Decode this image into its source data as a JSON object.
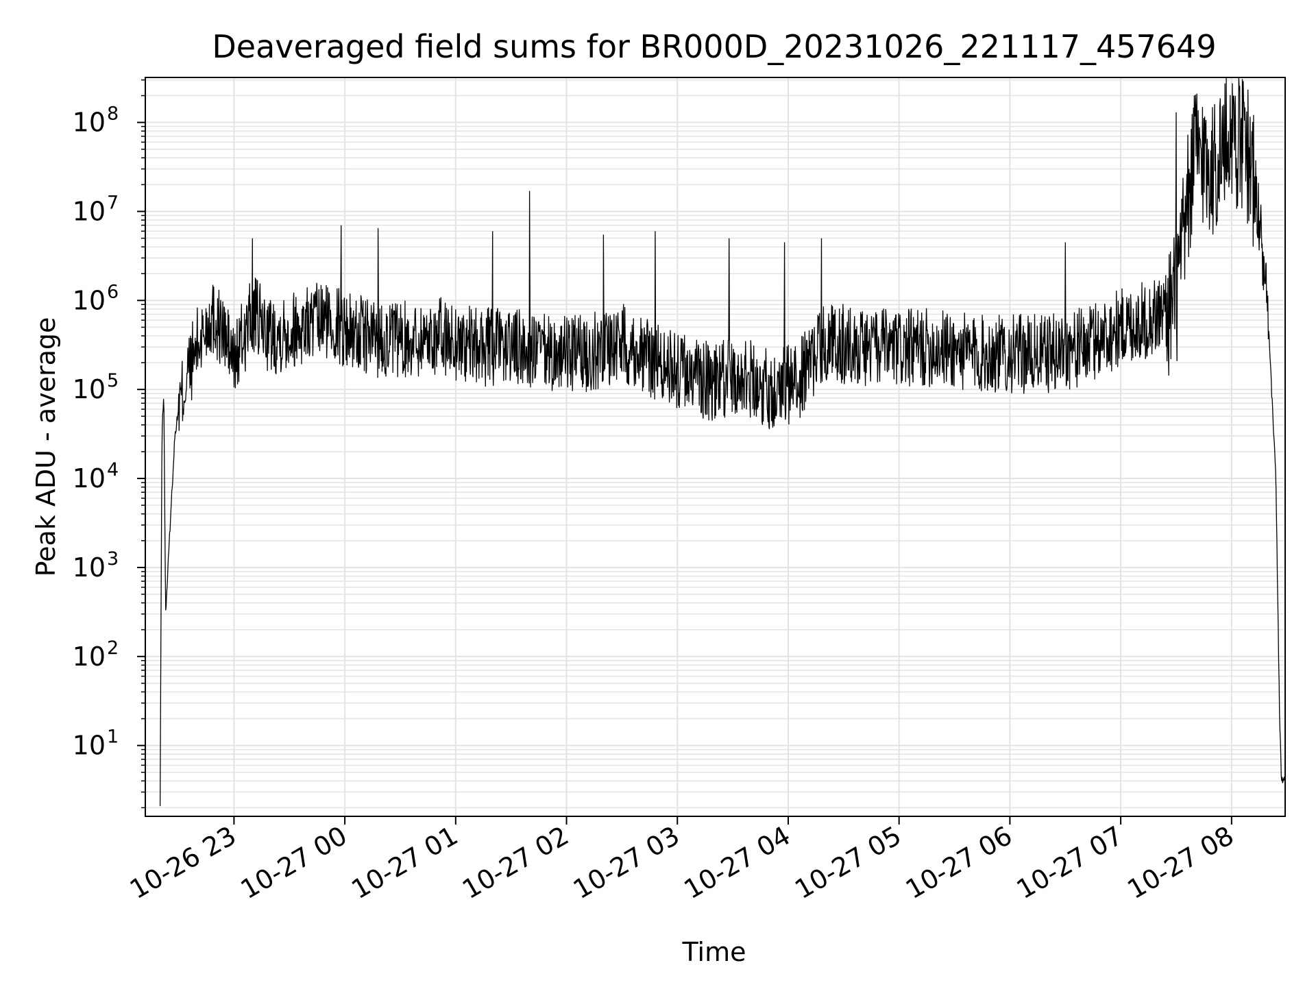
{
  "chart_data": {
    "type": "line",
    "title": "Deaveraged field sums for BR000D_20231026_221117_457649",
    "xlabel": "Time",
    "ylabel": "Peak ADU - average",
    "yscale": "log",
    "ylim": [
      1.6,
      320000000
    ],
    "xlim": [
      "2023-10-26 22:12",
      "2023-10-27 08:29"
    ],
    "grid": true,
    "line_color": "#000000",
    "grid_color": "#e3e3e3",
    "x_ticks": [
      "10-26 23",
      "10-27 00",
      "10-27 01",
      "10-27 02",
      "10-27 03",
      "10-27 04",
      "10-27 05",
      "10-27 06",
      "10-27 07",
      "10-27 08"
    ],
    "y_ticks": [
      {
        "base": "10",
        "exp": "1"
      },
      {
        "base": "10",
        "exp": "2"
      },
      {
        "base": "10",
        "exp": "3"
      },
      {
        "base": "10",
        "exp": "4"
      },
      {
        "base": "10",
        "exp": "5"
      },
      {
        "base": "10",
        "exp": "6"
      },
      {
        "base": "10",
        "exp": "7"
      },
      {
        "base": "10",
        "exp": "8"
      }
    ],
    "series": [
      {
        "x": [
          "2023-10-26 22:20",
          "2023-10-26 22:21",
          "2023-10-26 22:22",
          "2023-10-26 22:23",
          "2023-10-26 22:25",
          "2023-10-26 22:28",
          "2023-10-26 22:30",
          "2023-10-26 22:35",
          "2023-10-26 22:40",
          "2023-10-26 22:48",
          "2023-10-26 22:55",
          "2023-10-26 23:00",
          "2023-10-26 23:10",
          "2023-10-26 23:20",
          "2023-10-26 23:35",
          "2023-10-26 23:50",
          "2023-10-27 00:10",
          "2023-10-27 00:30",
          "2023-10-27 00:50",
          "2023-10-27 01:10",
          "2023-10-27 01:30",
          "2023-10-27 01:50",
          "2023-10-27 02:10",
          "2023-10-27 02:30",
          "2023-10-27 02:50",
          "2023-10-27 03:05",
          "2023-10-27 03:20",
          "2023-10-27 03:35",
          "2023-10-27 03:50",
          "2023-10-27 04:05",
          "2023-10-27 04:20",
          "2023-10-27 04:40",
          "2023-10-27 05:00",
          "2023-10-27 05:20",
          "2023-10-27 05:40",
          "2023-10-27 06:00",
          "2023-10-27 06:20",
          "2023-10-27 06:40",
          "2023-10-27 07:00",
          "2023-10-27 07:15",
          "2023-10-27 07:25",
          "2023-10-27 07:30",
          "2023-10-27 07:40",
          "2023-10-27 07:50",
          "2023-10-27 08:00",
          "2023-10-27 08:10",
          "2023-10-27 08:15",
          "2023-10-27 08:20",
          "2023-10-27 08:24",
          "2023-10-27 08:26",
          "2023-10-27 08:27",
          "2023-10-27 08:29"
        ],
        "y": [
          2,
          30000,
          100000,
          300,
          2000,
          30000,
          60000,
          150000,
          300000,
          700000,
          400000,
          200000,
          700000,
          400000,
          500000,
          600000,
          400000,
          350000,
          400000,
          300000,
          300000,
          250000,
          250000,
          350000,
          200000,
          150000,
          120000,
          150000,
          100000,
          120000,
          350000,
          300000,
          280000,
          300000,
          250000,
          250000,
          250000,
          300000,
          500000,
          600000,
          800000,
          1000000,
          50000000,
          30000000,
          80000000,
          40000000,
          8000000,
          500000,
          10000,
          20,
          4,
          4
        ],
        "peaks": [
          {
            "x": "2023-10-26 23:10",
            "y": 5000000
          },
          {
            "x": "2023-10-26 23:58",
            "y": 7000000
          },
          {
            "x": "2023-10-27 00:18",
            "y": 6500000
          },
          {
            "x": "2023-10-27 01:20",
            "y": 6000000
          },
          {
            "x": "2023-10-27 01:40",
            "y": 17000000
          },
          {
            "x": "2023-10-27 02:20",
            "y": 5500000
          },
          {
            "x": "2023-10-27 02:48",
            "y": 6000000
          },
          {
            "x": "2023-10-27 03:28",
            "y": 5000000
          },
          {
            "x": "2023-10-27 03:58",
            "y": 4500000
          },
          {
            "x": "2023-10-27 04:18",
            "y": 5000000
          },
          {
            "x": "2023-10-27 06:30",
            "y": 4500000
          },
          {
            "x": "2023-10-27 07:30",
            "y": 130000000
          },
          {
            "x": "2023-10-27 07:40",
            "y": 130000000
          },
          {
            "x": "2023-10-27 08:00",
            "y": 110000000
          }
        ]
      }
    ]
  }
}
